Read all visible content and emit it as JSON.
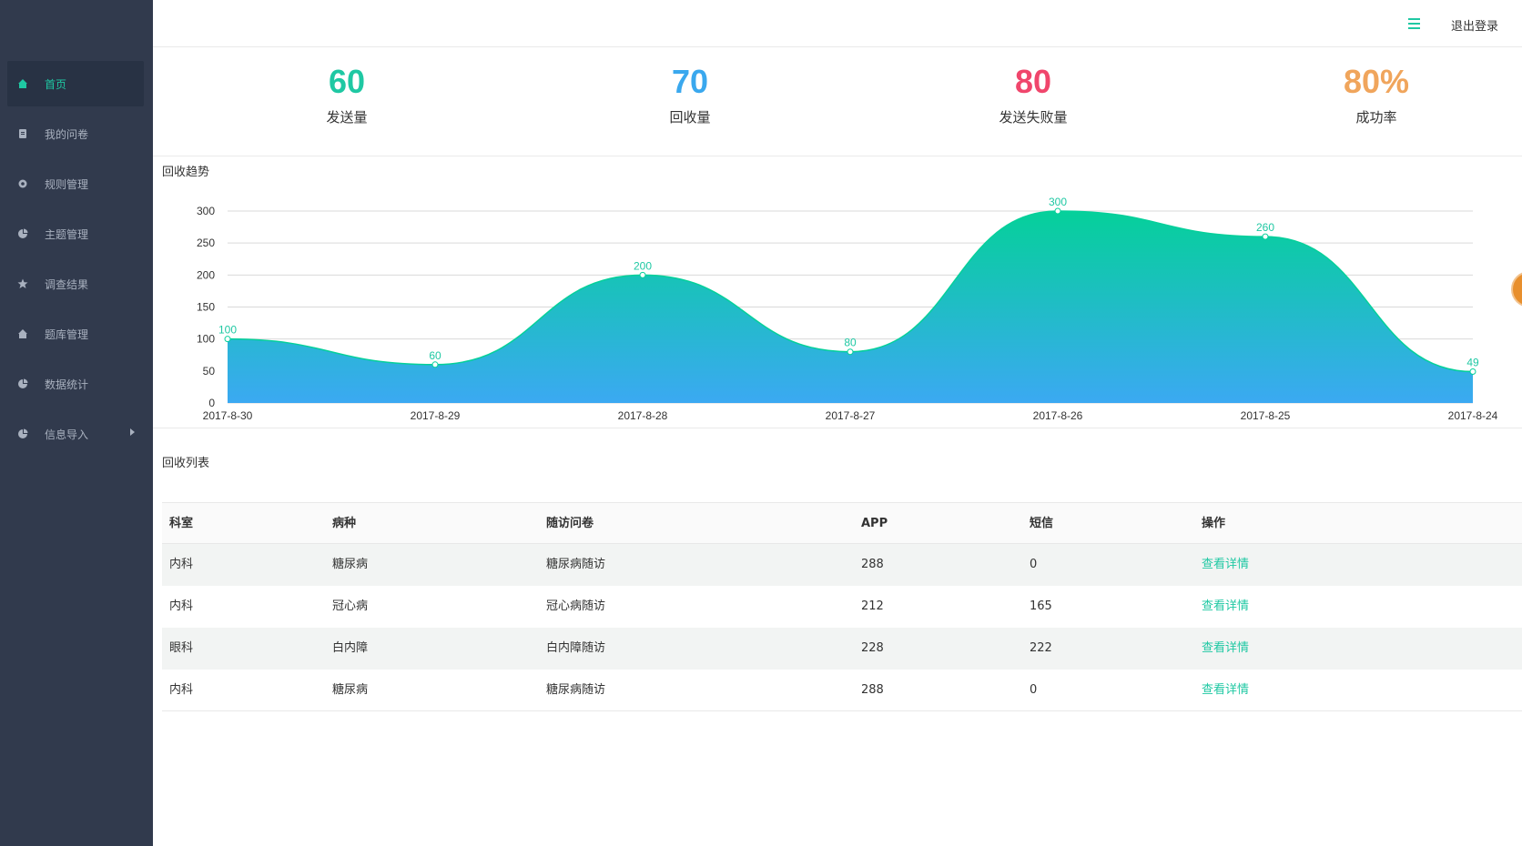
{
  "sidebar": {
    "items": [
      {
        "label": "首页",
        "icon": "home-icon",
        "active": true
      },
      {
        "label": "我的问卷",
        "icon": "document-icon"
      },
      {
        "label": "规则管理",
        "icon": "gear-icon"
      },
      {
        "label": "主题管理",
        "icon": "pie-chart-icon"
      },
      {
        "label": "调查结果",
        "icon": "star-icon"
      },
      {
        "label": "题库管理",
        "icon": "home-icon"
      },
      {
        "label": "数据统计",
        "icon": "pie-chart-icon"
      },
      {
        "label": "信息导入",
        "icon": "pie-chart-icon"
      }
    ]
  },
  "header": {
    "logout_label": "退出登录",
    "menu_icon": "hamburger-menu-icon"
  },
  "stats": [
    {
      "value": "60",
      "label": "发送量",
      "color": "#1fc8a3"
    },
    {
      "value": "70",
      "label": "回收量",
      "color": "#3aa8ee"
    },
    {
      "value": "80",
      "label": "发送失败量",
      "color": "#f0466c"
    },
    {
      "value": "80%",
      "label": "成功率",
      "color": "#f0a55c"
    }
  ],
  "chart_section_title": "回收趋势",
  "chart_data": {
    "type": "area",
    "categories": [
      "2017-8-30",
      "2017-8-29",
      "2017-8-28",
      "2017-8-27",
      "2017-8-26",
      "2017-8-25",
      "2017-8-24"
    ],
    "values": [
      100,
      60,
      200,
      80,
      300,
      260,
      49
    ],
    "ylim": [
      0,
      300
    ],
    "yticks": [
      0,
      50,
      100,
      150,
      200,
      250,
      300
    ],
    "grid": true,
    "smooth": true,
    "colors": {
      "top": "#05d09a",
      "bottom": "#3ba9f2",
      "label": "#1fc8a3"
    }
  },
  "list_title": "回收列表",
  "table": {
    "headers": [
      "科室",
      "病种",
      "随访问卷",
      "APP",
      "短信",
      "操作"
    ],
    "rows": [
      [
        "内科",
        "糖尿病",
        "糖尿病随访",
        "288",
        "0",
        "查看详情"
      ],
      [
        "内科",
        "冠心病",
        "冠心病随访",
        "212",
        "165",
        "查看详情"
      ],
      [
        "眼科",
        "白内障",
        "白内障随访",
        "228",
        "222",
        "查看详情"
      ],
      [
        "内科",
        "糖尿病",
        "糖尿病随访",
        "288",
        "0",
        "查看详情"
      ]
    ]
  }
}
